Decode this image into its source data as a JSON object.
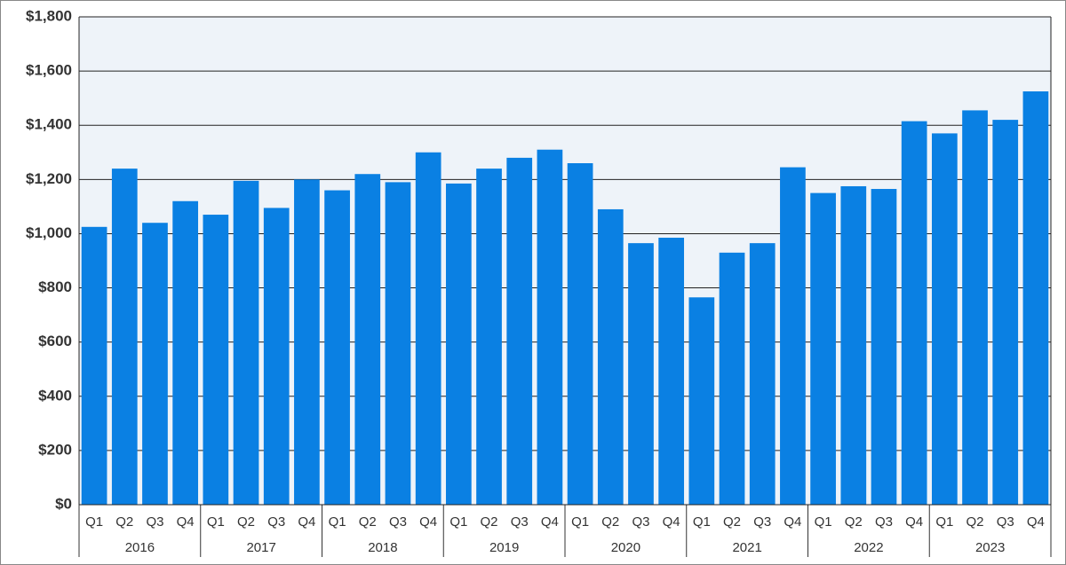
{
  "chart_data": {
    "type": "bar",
    "categories": [
      "Q1",
      "Q2",
      "Q3",
      "Q4",
      "Q1",
      "Q2",
      "Q3",
      "Q4",
      "Q1",
      "Q2",
      "Q3",
      "Q4",
      "Q1",
      "Q2",
      "Q3",
      "Q4",
      "Q1",
      "Q2",
      "Q3",
      "Q4",
      "Q1",
      "Q2",
      "Q3",
      "Q4",
      "Q1",
      "Q2",
      "Q3",
      "Q4",
      "Q1",
      "Q2",
      "Q3",
      "Q4"
    ],
    "category_groups": [
      "2016",
      "2017",
      "2018",
      "2019",
      "2020",
      "2021",
      "2022",
      "2023"
    ],
    "values": [
      1025,
      1240,
      1040,
      1120,
      1070,
      1195,
      1095,
      1200,
      1160,
      1220,
      1190,
      1300,
      1185,
      1240,
      1280,
      1310,
      1260,
      1090,
      965,
      985,
      765,
      930,
      965,
      1245,
      1150,
      1175,
      1165,
      1415,
      1370,
      1455,
      1420,
      1525
    ],
    "color": "#0a80e3",
    "ylim": [
      0,
      1800
    ],
    "yticks": [
      {
        "value": 0,
        "label": "$0"
      },
      {
        "value": 200,
        "label": "$200"
      },
      {
        "value": 400,
        "label": "$400"
      },
      {
        "value": 600,
        "label": "$600"
      },
      {
        "value": 800,
        "label": "$800"
      },
      {
        "value": 1000,
        "label": "$1,000"
      },
      {
        "value": 1200,
        "label": "$1,200"
      },
      {
        "value": 1400,
        "label": "$1,400"
      },
      {
        "value": 1600,
        "label": "$1,600"
      },
      {
        "value": 1800,
        "label": "$1,800"
      }
    ],
    "grid": true
  }
}
